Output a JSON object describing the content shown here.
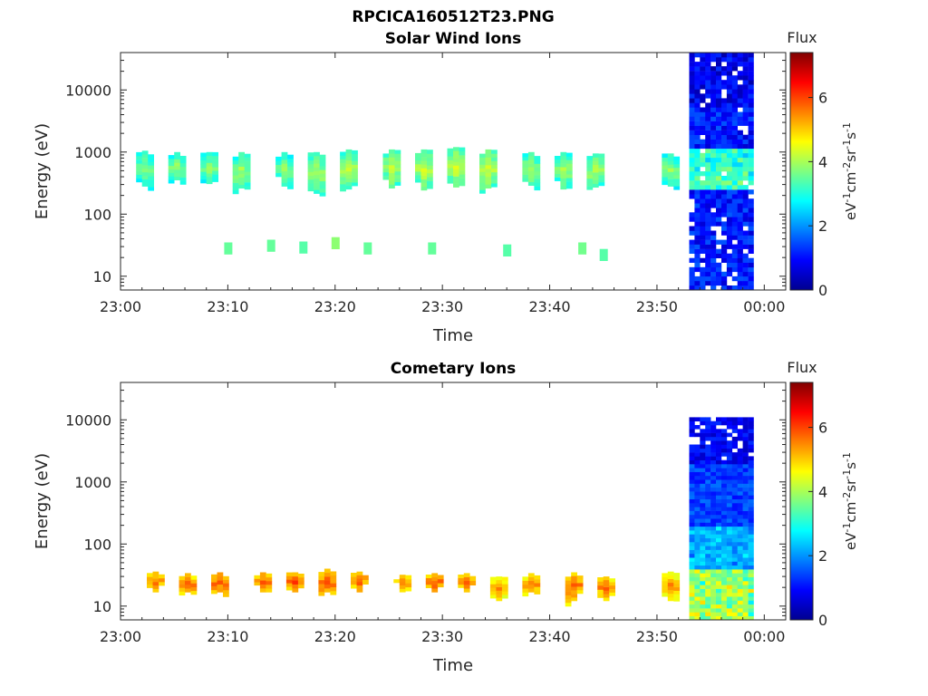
{
  "figure": {
    "filename": "RPCICA160512T23.PNG"
  },
  "chart_data": [
    {
      "type": "heatmap",
      "title": "Solar Wind Ions",
      "xlabel": "Time",
      "ylabel": "Energy (eV)",
      "y_scale": "log",
      "xlim": [
        "23:00",
        "00:02"
      ],
      "ylim": [
        6,
        40000
      ],
      "x_tick_labels": [
        "23:00",
        "23:10",
        "23:20",
        "23:30",
        "23:40",
        "23:50",
        "00:00"
      ],
      "y_tick_labels": [
        "10",
        "100",
        "1000",
        "10000"
      ],
      "colorbar": {
        "label": "eV-1cm-2sr-1s-1",
        "title": "Flux",
        "range": [
          0,
          7.4
        ],
        "ticks": [
          "0",
          "2",
          "4",
          "6"
        ],
        "colormap": "jet"
      },
      "sweeps": [
        {
          "time": "23:02",
          "e_low": 300,
          "e_high": 1050,
          "flux": 2.9
        },
        {
          "time": "23:05",
          "e_low": 380,
          "e_high": 1000,
          "flux": 3.0
        },
        {
          "time": "23:08",
          "e_low": 330,
          "e_high": 1000,
          "flux": 3.0
        },
        {
          "time": "23:11",
          "e_low": 280,
          "e_high": 1000,
          "flux": 3.1
        },
        {
          "time": "23:15",
          "e_low": 300,
          "e_high": 1000,
          "flux": 3.0
        },
        {
          "time": "23:18",
          "e_low": 230,
          "e_high": 1000,
          "flux": 3.2
        },
        {
          "time": "23:21",
          "e_low": 270,
          "e_high": 1100,
          "flux": 3.3
        },
        {
          "time": "23:25",
          "e_low": 280,
          "e_high": 1100,
          "flux": 3.3
        },
        {
          "time": "23:28",
          "e_low": 260,
          "e_high": 1100,
          "flux": 3.4
        },
        {
          "time": "23:31",
          "e_low": 290,
          "e_high": 1200,
          "flux": 3.4
        },
        {
          "time": "23:34",
          "e_low": 280,
          "e_high": 1100,
          "flux": 3.4
        },
        {
          "time": "23:38",
          "e_low": 310,
          "e_high": 1000,
          "flux": 3.2
        },
        {
          "time": "23:41",
          "e_low": 270,
          "e_high": 1000,
          "flux": 3.2
        },
        {
          "time": "23:44",
          "e_low": 290,
          "e_high": 950,
          "flux": 3.2
        },
        {
          "time": "23:51",
          "e_low": 300,
          "e_high": 950,
          "flux": 3.0
        }
      ],
      "low_energy_spots": [
        {
          "time": "23:10",
          "energy": 28,
          "flux": 3.5
        },
        {
          "time": "23:14",
          "energy": 31,
          "flux": 3.5
        },
        {
          "time": "23:17",
          "energy": 29,
          "flux": 3.4
        },
        {
          "time": "23:20",
          "energy": 34,
          "flux": 3.8
        },
        {
          "time": "23:23",
          "energy": 28,
          "flux": 3.5
        },
        {
          "time": "23:29",
          "energy": 28,
          "flux": 3.5
        },
        {
          "time": "23:36",
          "energy": 26,
          "flux": 3.4
        },
        {
          "time": "23:43",
          "energy": 28,
          "flux": 3.6
        },
        {
          "time": "23:45",
          "energy": 22,
          "flux": 3.4
        }
      ],
      "dense_block": {
        "t_start": "23:53",
        "t_end": "23:59",
        "e_low": 6,
        "e_high": 40000,
        "flux_mean": 0.9
      }
    },
    {
      "type": "heatmap",
      "title": "Cometary Ions",
      "xlabel": "Time",
      "ylabel": "Energy (eV)",
      "y_scale": "log",
      "xlim": [
        "23:00",
        "00:02"
      ],
      "ylim": [
        6,
        40000
      ],
      "x_tick_labels": [
        "23:00",
        "23:10",
        "23:20",
        "23:30",
        "23:40",
        "23:50",
        "00:00"
      ],
      "y_tick_labels": [
        "10",
        "100",
        "1000",
        "10000"
      ],
      "colorbar": {
        "label": "eV-1cm-2sr-1s-1",
        "title": "Flux",
        "range": [
          0,
          7.4
        ],
        "ticks": [
          "0",
          "2",
          "4",
          "6"
        ],
        "colormap": "jet"
      },
      "sweeps": [
        {
          "time": "23:03",
          "e_low": 18,
          "e_high": 36,
          "flux": 4.8
        },
        {
          "time": "23:06",
          "e_low": 18,
          "e_high": 34,
          "flux": 4.9
        },
        {
          "time": "23:09",
          "e_low": 18,
          "e_high": 35,
          "flux": 5.0
        },
        {
          "time": "23:13",
          "e_low": 18,
          "e_high": 35,
          "flux": 5.0
        },
        {
          "time": "23:16",
          "e_low": 18,
          "e_high": 35,
          "flux": 5.1
        },
        {
          "time": "23:19",
          "e_low": 18,
          "e_high": 40,
          "flux": 5.0
        },
        {
          "time": "23:22",
          "e_low": 18,
          "e_high": 36,
          "flux": 5.0
        },
        {
          "time": "23:26",
          "e_low": 18,
          "e_high": 32,
          "flux": 4.8
        },
        {
          "time": "23:29",
          "e_low": 18,
          "e_high": 34,
          "flux": 5.0
        },
        {
          "time": "23:32",
          "e_low": 18,
          "e_high": 34,
          "flux": 4.9
        },
        {
          "time": "23:35",
          "e_low": 13,
          "e_high": 30,
          "flux": 4.6
        },
        {
          "time": "23:38",
          "e_low": 18,
          "e_high": 34,
          "flux": 4.8
        },
        {
          "time": "23:42",
          "e_low": 13,
          "e_high": 35,
          "flux": 4.9
        },
        {
          "time": "23:45",
          "e_low": 13,
          "e_high": 30,
          "flux": 4.8
        },
        {
          "time": "23:51",
          "e_low": 13,
          "e_high": 36,
          "flux": 4.6
        }
      ],
      "dense_block": {
        "t_start": "23:53",
        "t_end": "23:59",
        "e_low": 6,
        "e_high": 11000,
        "flux_mean": 1.3
      }
    }
  ]
}
